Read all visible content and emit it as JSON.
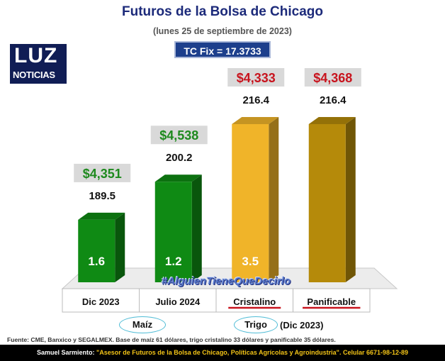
{
  "header": {
    "title": "Futuros de la Bolsa de Chicago",
    "subtitle": "(lunes 25 de septiembre de 2023)",
    "fx_label": "TC Fix = 17.3733"
  },
  "logo": {
    "top": "LUZ",
    "bottom": "NOTICIAS"
  },
  "hashtag": "#AlguienTieneQueDecirlo",
  "groups": [
    {
      "label": "Maíz",
      "suffix": ""
    },
    {
      "label": "Trigo",
      "suffix": "(Dic 2023)"
    }
  ],
  "source": "Fuente: CME, Banxico y SEGALMEX. Base de maíz 61 dólares, trigo cristalino 33 dólares y panificable 35 dólares.",
  "footer": {
    "author": "Samuel Sarmiento:",
    "text": " \"Asesor de Futuros de la Bolsa de Chicago, Políticas Agrícolas y Agroindustria\". Celular 6671-98-12-89"
  },
  "chart_data": {
    "type": "bar",
    "categories": [
      "Dic 2023",
      "Julio 2024",
      "Cristalino",
      "Panificable"
    ],
    "values": [
      189.5,
      200.2,
      216.4,
      216.4
    ],
    "value_labels": [
      "189.5",
      "200.2",
      "216.4",
      "216.4"
    ],
    "base_values": [
      "1.6",
      "1.2",
      "3.5",
      ""
    ],
    "price_labels": [
      "$4,351",
      "$4,538",
      "$4,333",
      "$4,368"
    ],
    "price_colors": [
      "#1e8a1e",
      "#1e8a1e",
      "#c8141e",
      "#c8141e"
    ],
    "bar_colors": [
      "#0f8a14",
      "#0f8a14",
      "#f0b429",
      "#b58a0a"
    ],
    "ylim": [
      0,
      216.4
    ],
    "grid": false,
    "legend": "none"
  }
}
